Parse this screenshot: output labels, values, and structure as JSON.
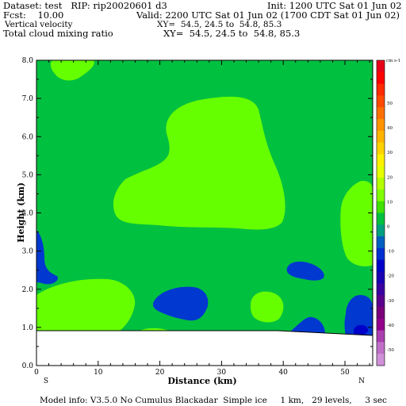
{
  "header": {
    "dataset": "Dataset: test   RIP: rip20020601 d3",
    "init": "Init: 1200 UTC Sat 01 Jun 02",
    "fcst": "Fcst:    10.00",
    "valid": "Valid: 2200 UTC Sat 01 Jun 02 (1700 CDT Sat 01 Jun 02)",
    "field1_name": "Vertical velocity",
    "field1_xy": "XY=  54.5, 24.5 to  54.8, 85.3",
    "field2_name": "Total cloud mixing ratio",
    "field2_xy": "XY=  54.5, 24.5 to  54.8, 85.3"
  },
  "footer": {
    "model_info": "Model info: V3.5.0 No Cumulus Blackadar  Simple ice     1 km,   29 levels,     3 sec"
  },
  "chart_data": {
    "type": "heatmap",
    "title": "Vertical velocity",
    "xlabel": "Distance (km)",
    "ylabel": "Height (km)",
    "xlim": [
      0,
      54.5
    ],
    "ylim": [
      0,
      8
    ],
    "x_ticks": [
      0,
      10,
      20,
      30,
      40,
      50
    ],
    "y_ticks": [
      "0.0",
      "1.0",
      "2.0",
      "3.0",
      "4.0",
      "5.0",
      "6.0",
      "7.0",
      "8.0"
    ],
    "x_end_labels": {
      "left": "S",
      "right": "N"
    },
    "colorbar": {
      "unit": "cm s-1",
      "levels": [
        50,
        40,
        30,
        20,
        10,
        0,
        -10,
        -20,
        -30,
        -40,
        -50
      ],
      "colors": [
        "#e8001a",
        "#ff0000",
        "#ff2a00",
        "#ff4a00",
        "#ff7000",
        "#ff9400",
        "#ffb400",
        "#ffd200",
        "#fff000",
        "#e6ff00",
        "#b4ff00",
        "#80ff00",
        "#40e000",
        "#00c040",
        "#00a080",
        "#0060c0",
        "#0030d0",
        "#0000c8",
        "#1a00b4",
        "#3a00a0",
        "#5a008c",
        "#780078",
        "#92008c",
        "#aa40b0",
        "#c070c8",
        "#d090d8"
      ]
    },
    "terrain_height_km": 0.9,
    "regions": [
      {
        "name": "background",
        "range": "0 to 10",
        "color": "#00c040"
      },
      {
        "name": "updraft-upper-left",
        "range": "0 to 10",
        "color": "#66ff00"
      },
      {
        "name": "updraft-upper-center",
        "range": "0 to 10",
        "color": "#66ff00"
      },
      {
        "name": "updraft-right",
        "range": "0 to 10",
        "color": "#66ff00"
      },
      {
        "name": "updraft-lower-left",
        "range": "0 to 10",
        "color": "#66ff00"
      },
      {
        "name": "updraft-lower-center",
        "range": "0 to 10",
        "color": "#66ff00"
      },
      {
        "name": "downdraft-left",
        "range": "-10 to -20",
        "color": "#0038d0"
      },
      {
        "name": "downdraft-center",
        "range": "-10 to -20",
        "color": "#0038d0"
      },
      {
        "name": "downdraft-right-mid",
        "range": "-10 to -20",
        "color": "#0038d0"
      },
      {
        "name": "downdraft-right-low",
        "range": "-10 to -20",
        "color": "#0038d0"
      },
      {
        "name": "downdraft-core",
        "range": "-20 to -30",
        "color": "#0000c8"
      }
    ]
  }
}
